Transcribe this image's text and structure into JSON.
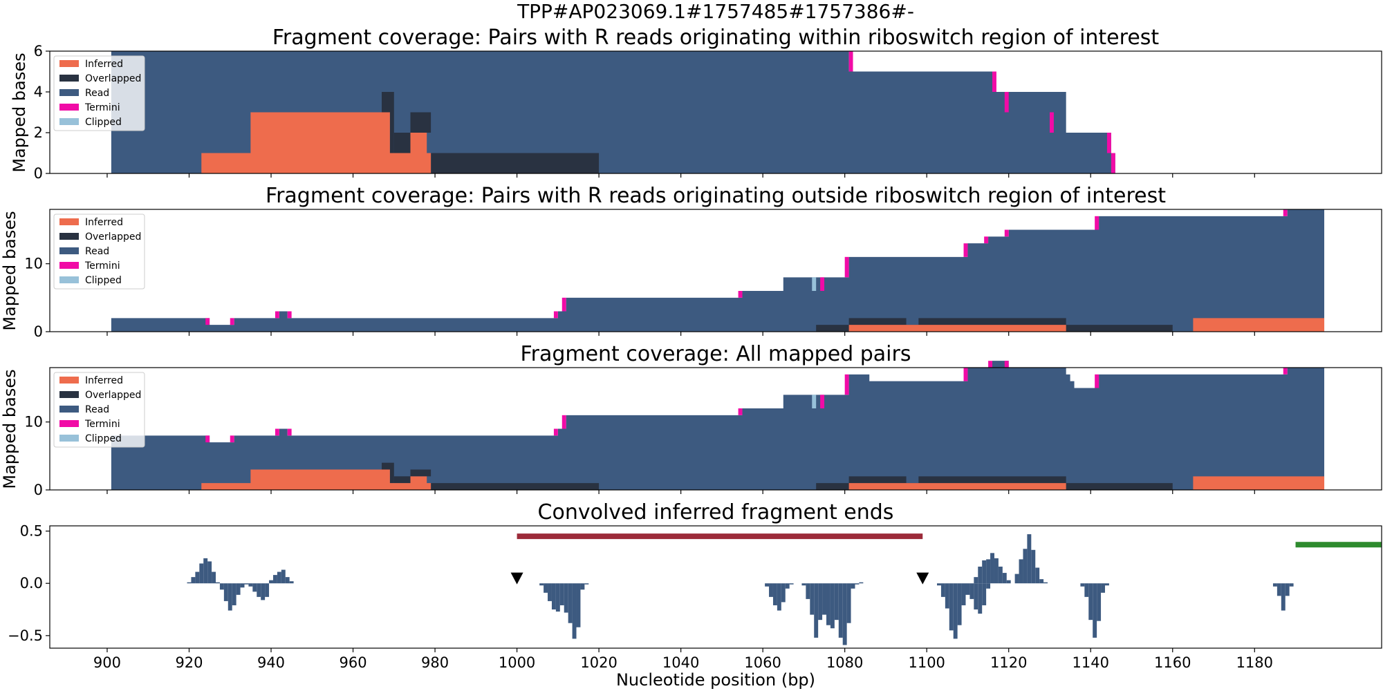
{
  "figure": {
    "suptitle": "TPP#AP023069.1#1757485#1757386#-",
    "xlabel": "Nucleotide position (bp)",
    "ylabel": "Mapped bases"
  },
  "legend": [
    {
      "label": "Inferred",
      "color": "#EE6C4D"
    },
    {
      "label": "Overlapped",
      "color": "#293241"
    },
    {
      "label": "Read",
      "color": "#3D5A80"
    },
    {
      "label": "Termini",
      "color": "#F10BA6"
    },
    {
      "label": "Clipped",
      "color": "#98C1D9"
    }
  ],
  "chart_data": [
    {
      "type": "area",
      "title": "Fragment coverage: Pairs with R reads originating within riboswitch region of interest",
      "ylabel": "Mapped bases",
      "xlim": [
        886,
        1211
      ],
      "ylim": [
        0,
        6
      ],
      "yticks": [
        0,
        2,
        4,
        6
      ],
      "legend_position": "upper-left",
      "read_steps": [
        [
          901,
          6
        ],
        [
          1081,
          5
        ],
        [
          1116,
          4
        ],
        [
          1134,
          2
        ],
        [
          1145,
          1
        ],
        [
          1146,
          0
        ]
      ],
      "overlapped_steps": [
        [
          901,
          0
        ],
        [
          979,
          1
        ],
        [
          1020,
          0
        ]
      ],
      "overlapped_blocks": [
        [
          967,
          970,
          3,
          4
        ],
        [
          969,
          970,
          0,
          3
        ],
        [
          970,
          974,
          1,
          2
        ],
        [
          974,
          979,
          2,
          3
        ]
      ],
      "inferred_steps": [
        [
          901,
          0
        ],
        [
          923,
          1
        ],
        [
          935,
          3
        ],
        [
          969,
          1
        ],
        [
          974,
          2
        ],
        [
          978,
          1
        ],
        [
          979,
          0
        ]
      ],
      "termini": [
        [
          1081,
          5,
          6
        ],
        [
          1116,
          4,
          5
        ],
        [
          1119,
          3,
          4
        ],
        [
          1130,
          2,
          3
        ],
        [
          1144,
          1,
          2
        ],
        [
          1145,
          0,
          1
        ]
      ],
      "clipped": []
    },
    {
      "type": "area",
      "title": "Fragment coverage: Pairs with R reads originating outside riboswitch region of interest",
      "ylabel": "Mapped bases",
      "xlim": [
        886,
        1211
      ],
      "ylim": [
        0,
        18
      ],
      "yticks": [
        0,
        10
      ],
      "legend_position": "upper-left",
      "read_steps": [
        [
          901,
          2
        ],
        [
          925,
          1
        ],
        [
          931,
          2
        ],
        [
          942,
          3
        ],
        [
          944,
          2
        ],
        [
          1010,
          3
        ],
        [
          1012,
          5
        ],
        [
          1055,
          6
        ],
        [
          1065,
          8
        ],
        [
          1081,
          11
        ],
        [
          1110,
          13
        ],
        [
          1115,
          14
        ],
        [
          1120,
          15
        ],
        [
          1142,
          17
        ],
        [
          1188,
          18
        ],
        [
          1197,
          0
        ]
      ],
      "overlapped_steps": [
        [
          901,
          0
        ],
        [
          1073,
          1
        ],
        [
          1081,
          2
        ],
        [
          1095,
          1
        ],
        [
          1098,
          2
        ],
        [
          1134,
          1
        ],
        [
          1160,
          0
        ]
      ],
      "overlapped_blocks": [],
      "inferred_steps": [
        [
          901,
          0
        ],
        [
          1081,
          1
        ],
        [
          1134,
          0
        ],
        [
          1165,
          2
        ],
        [
          1197,
          0
        ]
      ],
      "termini": [
        [
          924,
          1,
          2
        ],
        [
          930,
          1,
          2
        ],
        [
          941,
          2,
          3
        ],
        [
          944,
          2,
          3
        ],
        [
          1009,
          2,
          3
        ],
        [
          1011,
          3,
          5
        ],
        [
          1054,
          5,
          6
        ],
        [
          1074,
          6,
          8
        ],
        [
          1080,
          8,
          11
        ],
        [
          1109,
          11,
          13
        ],
        [
          1114,
          13,
          14
        ],
        [
          1119,
          14,
          15
        ],
        [
          1141,
          15,
          17
        ],
        [
          1187,
          17,
          18
        ]
      ],
      "clipped": [
        [
          1072,
          6,
          8
        ]
      ]
    },
    {
      "type": "area",
      "title": "Fragment coverage: All mapped pairs",
      "ylabel": "Mapped bases",
      "xlim": [
        886,
        1211
      ],
      "ylim": [
        0,
        18
      ],
      "yticks": [
        0,
        10
      ],
      "legend_position": "upper-left",
      "read_steps": [
        [
          901,
          8
        ],
        [
          925,
          7
        ],
        [
          931,
          8
        ],
        [
          942,
          9
        ],
        [
          944,
          8
        ],
        [
          1010,
          9
        ],
        [
          1012,
          11
        ],
        [
          1055,
          12
        ],
        [
          1065,
          14
        ],
        [
          1081,
          17
        ],
        [
          1086,
          16
        ],
        [
          1110,
          18
        ],
        [
          1116,
          19
        ],
        [
          1120,
          18
        ],
        [
          1134,
          17
        ],
        [
          1135,
          16
        ],
        [
          1136,
          15
        ],
        [
          1142,
          17
        ],
        [
          1188,
          18
        ],
        [
          1197,
          0
        ]
      ],
      "overlapped_steps": [
        [
          901,
          0
        ],
        [
          979,
          1
        ],
        [
          1020,
          0
        ],
        [
          1073,
          1
        ],
        [
          1081,
          2
        ],
        [
          1095,
          1
        ],
        [
          1098,
          2
        ],
        [
          1134,
          1
        ],
        [
          1160,
          0
        ]
      ],
      "overlapped_blocks": [
        [
          967,
          970,
          3,
          4
        ],
        [
          969,
          970,
          1,
          3
        ],
        [
          970,
          974,
          1,
          2
        ],
        [
          974,
          979,
          2,
          3
        ]
      ],
      "inferred_steps": [
        [
          901,
          0
        ],
        [
          923,
          1
        ],
        [
          935,
          3
        ],
        [
          969,
          1
        ],
        [
          974,
          2
        ],
        [
          978,
          1
        ],
        [
          979,
          0
        ],
        [
          1081,
          1
        ],
        [
          1134,
          0
        ],
        [
          1165,
          2
        ],
        [
          1197,
          0
        ]
      ],
      "termini": [
        [
          924,
          7,
          8
        ],
        [
          930,
          7,
          8
        ],
        [
          941,
          8,
          9
        ],
        [
          944,
          8,
          9
        ],
        [
          1009,
          8,
          9
        ],
        [
          1011,
          9,
          11
        ],
        [
          1054,
          11,
          12
        ],
        [
          1074,
          12,
          14
        ],
        [
          1080,
          14,
          17
        ],
        [
          1109,
          16,
          18
        ],
        [
          1115,
          18,
          19
        ],
        [
          1119,
          18,
          19
        ],
        [
          1141,
          15,
          17
        ],
        [
          1187,
          17,
          18
        ]
      ],
      "clipped": [
        [
          1072,
          12,
          14
        ]
      ]
    },
    {
      "type": "bar",
      "title": "Convolved inferred fragment ends",
      "xlabel": "Nucleotide position (bp)",
      "xlim": [
        886,
        1211
      ],
      "ylim": [
        -0.62,
        0.55
      ],
      "yticks": [
        0.5,
        0.0,
        -0.5
      ],
      "yticklabels": [
        "0.5",
        "0.0",
        "−0.5"
      ],
      "xticks": [
        900,
        920,
        940,
        960,
        980,
        1000,
        1020,
        1040,
        1060,
        1080,
        1100,
        1120,
        1140,
        1160,
        1180
      ],
      "bars": [
        [
          920,
          0.01
        ],
        [
          921,
          0.06
        ],
        [
          922,
          0.11
        ],
        [
          923,
          0.19
        ],
        [
          924,
          0.24
        ],
        [
          925,
          0.21
        ],
        [
          926,
          0.11
        ],
        [
          927,
          0.01
        ],
        [
          928,
          -0.06
        ],
        [
          929,
          -0.17
        ],
        [
          930,
          -0.26
        ],
        [
          931,
          -0.21
        ],
        [
          932,
          -0.11
        ],
        [
          933,
          -0.04
        ],
        [
          934,
          -0.01
        ],
        [
          935,
          -0.03
        ],
        [
          936,
          -0.08
        ],
        [
          937,
          -0.13
        ],
        [
          938,
          -0.16
        ],
        [
          939,
          -0.13
        ],
        [
          940,
          0.03
        ],
        [
          941,
          0.08
        ],
        [
          942,
          0.11
        ],
        [
          943,
          0.13
        ],
        [
          944,
          0.06
        ],
        [
          945,
          0.02
        ],
        [
          1006,
          -0.02
        ],
        [
          1007,
          -0.09
        ],
        [
          1008,
          -0.17
        ],
        [
          1009,
          -0.25
        ],
        [
          1010,
          -0.27
        ],
        [
          1011,
          -0.21
        ],
        [
          1012,
          -0.28
        ],
        [
          1013,
          -0.38
        ],
        [
          1014,
          -0.53
        ],
        [
          1015,
          -0.42
        ],
        [
          1016,
          -0.06
        ],
        [
          1017,
          -0.01
        ],
        [
          1061,
          -0.03
        ],
        [
          1062,
          -0.13
        ],
        [
          1063,
          -0.21
        ],
        [
          1064,
          -0.26
        ],
        [
          1065,
          -0.18
        ],
        [
          1066,
          -0.05
        ],
        [
          1067,
          -0.01
        ],
        [
          1070,
          -0.02
        ],
        [
          1071,
          -0.15
        ],
        [
          1072,
          -0.3
        ],
        [
          1073,
          -0.52
        ],
        [
          1074,
          -0.35
        ],
        [
          1075,
          -0.3
        ],
        [
          1076,
          -0.4
        ],
        [
          1077,
          -0.43
        ],
        [
          1078,
          -0.35
        ],
        [
          1079,
          -0.52
        ],
        [
          1080,
          -0.59
        ],
        [
          1081,
          -0.38
        ],
        [
          1082,
          -0.05
        ],
        [
          1083,
          -0.01
        ],
        [
          1084,
          0.01
        ],
        [
          1103,
          -0.02
        ],
        [
          1104,
          -0.13
        ],
        [
          1105,
          -0.24
        ],
        [
          1106,
          -0.45
        ],
        [
          1107,
          -0.53
        ],
        [
          1108,
          -0.4
        ],
        [
          1109,
          -0.21
        ],
        [
          1110,
          -0.11
        ],
        [
          1111,
          -0.15
        ],
        [
          1112,
          -0.25
        ],
        [
          1113,
          -0.29
        ],
        [
          1114,
          -0.21
        ],
        [
          1115,
          -0.05
        ],
        [
          1112,
          0.06
        ],
        [
          1113,
          0.16
        ],
        [
          1114,
          0.22
        ],
        [
          1115,
          0.23
        ],
        [
          1116,
          0.29
        ],
        [
          1117,
          0.24
        ],
        [
          1118,
          0.16
        ],
        [
          1119,
          0.1
        ],
        [
          1120,
          0.03
        ],
        [
          1122,
          0.09
        ],
        [
          1123,
          0.23
        ],
        [
          1124,
          0.33
        ],
        [
          1125,
          0.47
        ],
        [
          1126,
          0.32
        ],
        [
          1127,
          0.15
        ],
        [
          1128,
          0.04
        ],
        [
          1129,
          0.01
        ],
        [
          1138,
          -0.03
        ],
        [
          1139,
          -0.13
        ],
        [
          1140,
          -0.35
        ],
        [
          1141,
          -0.52
        ],
        [
          1142,
          -0.36
        ],
        [
          1143,
          -0.09
        ],
        [
          1144,
          -0.02
        ],
        [
          1185,
          -0.03
        ],
        [
          1186,
          -0.12
        ],
        [
          1187,
          -0.26
        ],
        [
          1188,
          -0.12
        ],
        [
          1189,
          -0.03
        ]
      ],
      "markers": [
        {
          "x": 1000,
          "y": 0.05
        },
        {
          "x": 1099,
          "y": 0.05
        }
      ],
      "region_bars": [
        {
          "x0": 1000,
          "x1": 1099,
          "y": 0.45,
          "color": "#9C2B3A"
        },
        {
          "x0": 1190,
          "x1": 1211,
          "y": 0.37,
          "color": "#2E8B2E"
        }
      ]
    }
  ]
}
